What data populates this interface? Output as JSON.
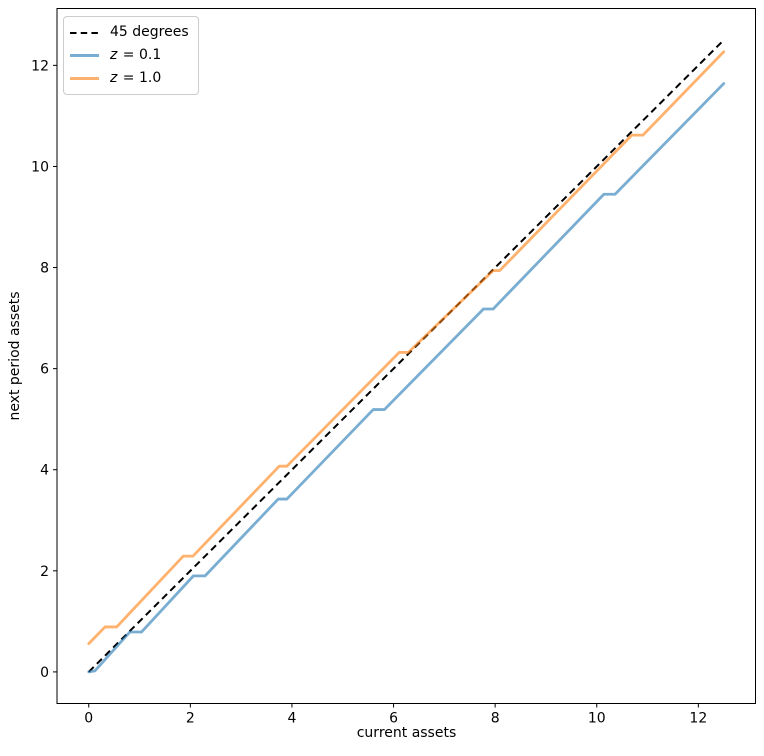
{
  "chart_data": {
    "type": "line",
    "title": "",
    "xlabel": "current assets",
    "ylabel": "next period assets",
    "xlim": [
      -0.625,
      13.125
    ],
    "ylim": [
      -0.625,
      13.125
    ],
    "xticks": [
      0,
      2,
      4,
      6,
      8,
      10,
      12
    ],
    "yticks": [
      0,
      2,
      4,
      6,
      8,
      10,
      12
    ],
    "grid": false,
    "legend": {
      "position": "upper left",
      "entries": [
        {
          "label": "45 degrees",
          "style": "dashed",
          "color": "#000000"
        },
        {
          "label": "z = 0.1",
          "label_math": "z",
          "label_rest": " = 0.1",
          "style": "solid",
          "color": "#1f77b4"
        },
        {
          "label": "z = 1.0",
          "label_math": "z",
          "label_rest": " = 1.0",
          "style": "solid",
          "color": "#ff7f0e"
        }
      ]
    },
    "series": [
      {
        "name": "45 degrees",
        "color": "#000000",
        "opacity": 1,
        "dash": "7,4.5",
        "width": 2,
        "points": [
          [
            0,
            0
          ],
          [
            12.5,
            12.5
          ]
        ]
      },
      {
        "name": "z = 0.1",
        "color": "#1f77b4",
        "opacity": 0.6,
        "dash": "",
        "width": 2.8,
        "points": [
          [
            0,
            0
          ],
          [
            0.12,
            0.02
          ],
          [
            0.81,
            0.79
          ],
          [
            1.04,
            0.79
          ],
          [
            2.06,
            1.9
          ],
          [
            2.29,
            1.9
          ],
          [
            3.73,
            3.42
          ],
          [
            3.9,
            3.42
          ],
          [
            5.6,
            5.19
          ],
          [
            5.82,
            5.19
          ],
          [
            7.77,
            7.18
          ],
          [
            7.96,
            7.18
          ],
          [
            10.14,
            9.45
          ],
          [
            10.36,
            9.45
          ],
          [
            12.5,
            11.64
          ]
        ]
      },
      {
        "name": "z = 1.0",
        "color": "#ff7f0e",
        "opacity": 0.6,
        "dash": "",
        "width": 2.8,
        "points": [
          [
            0,
            0.56
          ],
          [
            0.32,
            0.89
          ],
          [
            0.55,
            0.89
          ],
          [
            1.86,
            2.29
          ],
          [
            2.05,
            2.29
          ],
          [
            3.75,
            4.07
          ],
          [
            3.9,
            4.07
          ],
          [
            6.11,
            6.32
          ],
          [
            6.29,
            6.32
          ],
          [
            7.96,
            7.94
          ],
          [
            8.09,
            7.94
          ],
          [
            10.69,
            10.62
          ],
          [
            10.91,
            10.62
          ],
          [
            12.5,
            12.27
          ]
        ]
      }
    ]
  }
}
